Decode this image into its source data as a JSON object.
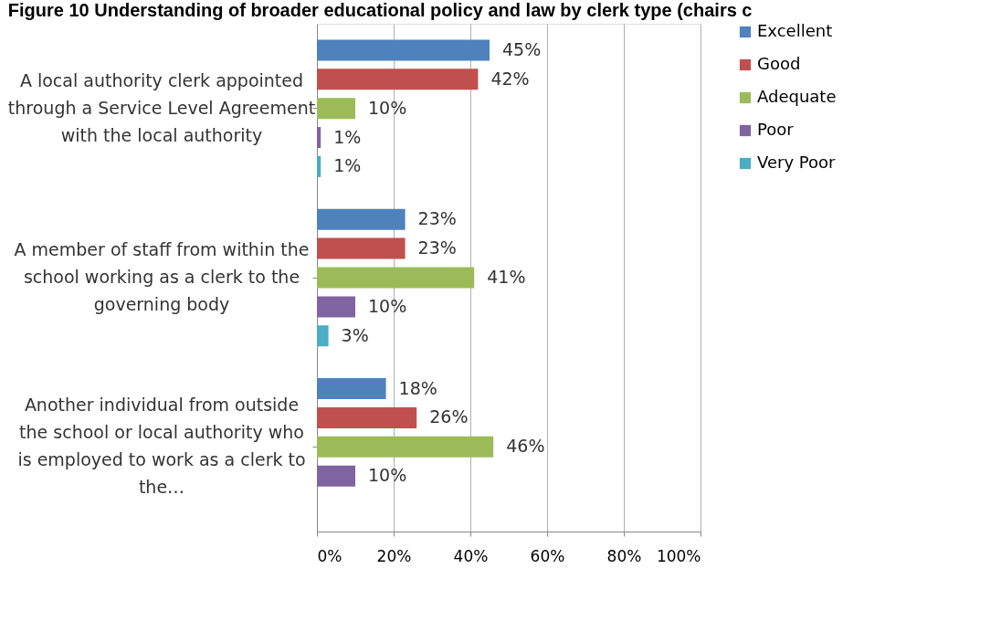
{
  "chart_data": {
    "type": "bar",
    "orientation": "horizontal",
    "title": "Figure 10 Understanding of broader educational policy and law by clerk type (chairs c",
    "categories": [
      "A local authority clerk appointed through a Service Level Agreement with the local authority",
      "A member of staff from within the school working as a clerk to the governing body",
      "Another individual from outside the school or local authority who is employed to work as a clerk to the…"
    ],
    "series": [
      {
        "name": "Excellent",
        "color": "#4f81bd",
        "values": [
          45,
          23,
          18
        ],
        "value_labels": [
          "45%",
          "23%",
          "18%"
        ]
      },
      {
        "name": "Good",
        "color": "#c0504d",
        "values": [
          42,
          23,
          26
        ],
        "value_labels": [
          "42%",
          "23%",
          "26%"
        ]
      },
      {
        "name": "Adequate",
        "color": "#9bbb59",
        "values": [
          10,
          41,
          46
        ],
        "value_labels": [
          "10%",
          "41%",
          "46%"
        ]
      },
      {
        "name": "Poor",
        "color": "#8064a2",
        "values": [
          1,
          10,
          10
        ],
        "value_labels": [
          "1%",
          "10%",
          "10%"
        ]
      },
      {
        "name": "Very Poor",
        "color": "#4bacc6",
        "values": [
          1,
          3,
          null
        ],
        "value_labels": [
          "1%",
          "3%",
          null
        ]
      }
    ],
    "xlim": [
      0,
      100
    ],
    "xticks": [
      {
        "value": 0,
        "label": "0%"
      },
      {
        "value": 20,
        "label": "20%"
      },
      {
        "value": 40,
        "label": "40%"
      },
      {
        "value": 60,
        "label": "60%"
      },
      {
        "value": 80,
        "label": "80%"
      },
      {
        "value": 100,
        "label": "100%"
      }
    ],
    "grid": "x",
    "legend": "right"
  }
}
